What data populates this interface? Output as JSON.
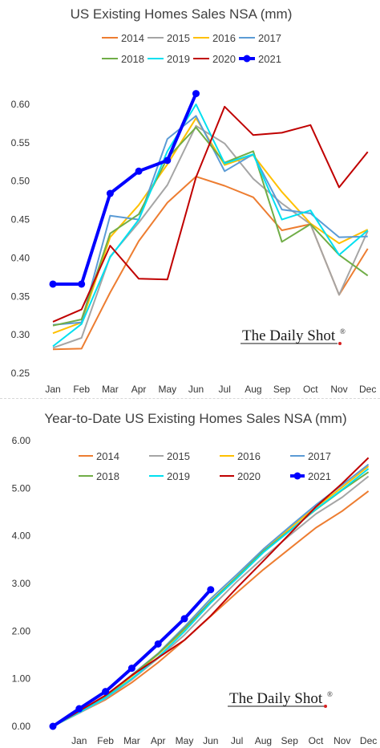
{
  "chart_data": [
    {
      "type": "line",
      "title": "US Existing Homes Sales NSA (mm)",
      "categories": [
        "Jan",
        "Feb",
        "Mar",
        "Apr",
        "May",
        "Jun",
        "Jul",
        "Aug",
        "Sep",
        "Oct",
        "Nov",
        "Dec"
      ],
      "ylim": [
        0.25,
        0.6
      ],
      "yticks": [
        "0.25",
        "0.30",
        "0.35",
        "0.40",
        "0.45",
        "0.50",
        "0.55",
        "0.60"
      ],
      "grid": false,
      "legend_position": "top",
      "watermark": "The Daily Shot",
      "series": [
        {
          "name": "2014",
          "color": "#ED7D31",
          "values": [
            0.281,
            0.282,
            0.355,
            0.422,
            0.472,
            0.506,
            0.494,
            0.479,
            0.436,
            0.444,
            0.352,
            0.412
          ]
        },
        {
          "name": "2015",
          "color": "#A5A5A5",
          "values": [
            0.283,
            0.296,
            0.402,
            0.446,
            0.495,
            0.572,
            0.549,
            0.503,
            0.471,
            0.444,
            0.352,
            0.435
          ]
        },
        {
          "name": "2016",
          "color": "#FFC000",
          "values": [
            0.302,
            0.316,
            0.427,
            0.469,
            0.522,
            0.582,
            0.521,
            0.534,
            0.486,
            0.445,
            0.419,
            0.437
          ]
        },
        {
          "name": "2017",
          "color": "#5B9BD5",
          "values": [
            0.313,
            0.316,
            0.455,
            0.45,
            0.555,
            0.585,
            0.513,
            0.535,
            0.463,
            0.458,
            0.427,
            0.428
          ]
        },
        {
          "name": "2018",
          "color": "#70AD47",
          "values": [
            0.312,
            0.32,
            0.432,
            0.457,
            0.53,
            0.57,
            0.524,
            0.539,
            0.421,
            0.444,
            0.404,
            0.377
          ]
        },
        {
          "name": "2019",
          "color": "#00E0F0",
          "values": [
            0.285,
            0.314,
            0.401,
            0.45,
            0.539,
            0.6,
            0.523,
            0.535,
            0.45,
            0.462,
            0.404,
            0.436
          ]
        },
        {
          "name": "2020",
          "color": "#C00000",
          "values": [
            0.317,
            0.333,
            0.416,
            0.373,
            0.372,
            0.505,
            0.597,
            0.56,
            0.563,
            0.573,
            0.492,
            0.538
          ]
        },
        {
          "name": "2021",
          "color": "#0000FF",
          "values": [
            0.366,
            0.366,
            0.484,
            0.513,
            0.527,
            0.614,
            null,
            null,
            null,
            null,
            null,
            null
          ]
        }
      ]
    },
    {
      "type": "line",
      "title": "Year-to-Date US Existing Homes Sales NSA (mm)",
      "categories": [
        "",
        "Jan",
        "Feb",
        "Mar",
        "Apr",
        "May",
        "Jun",
        "Jul",
        "Aug",
        "Sep",
        "Oct",
        "Nov",
        "Dec"
      ],
      "ylim": [
        0.0,
        6.0
      ],
      "yticks": [
        "0.00",
        "1.00",
        "2.00",
        "3.00",
        "4.00",
        "5.00",
        "6.00"
      ],
      "grid": false,
      "legend_position": "top",
      "watermark": "The Daily Shot",
      "series": [
        {
          "name": "2014",
          "color": "#ED7D31",
          "values": [
            0,
            0.28,
            0.56,
            0.92,
            1.34,
            1.81,
            2.31,
            2.81,
            3.29,
            3.73,
            4.17,
            4.52,
            4.94
          ]
        },
        {
          "name": "2015",
          "color": "#A5A5A5",
          "values": [
            0,
            0.28,
            0.58,
            0.98,
            1.43,
            1.92,
            2.49,
            3.04,
            3.54,
            4.01,
            4.46,
            4.81,
            5.25
          ]
        },
        {
          "name": "2016",
          "color": "#FFC000",
          "values": [
            0,
            0.3,
            0.62,
            1.05,
            1.51,
            2.03,
            2.62,
            3.14,
            3.67,
            4.16,
            4.6,
            5.02,
            5.46
          ]
        },
        {
          "name": "2017",
          "color": "#5B9BD5",
          "values": [
            0,
            0.31,
            0.63,
            1.08,
            1.53,
            2.09,
            2.68,
            3.19,
            3.72,
            4.19,
            4.65,
            5.07,
            5.5
          ]
        },
        {
          "name": "2018",
          "color": "#70AD47",
          "values": [
            0,
            0.31,
            0.63,
            1.07,
            1.52,
            2.05,
            2.62,
            3.14,
            3.68,
            4.11,
            4.55,
            4.96,
            5.34
          ]
        },
        {
          "name": "2019",
          "color": "#00E0F0",
          "values": [
            0,
            0.29,
            0.6,
            1.0,
            1.45,
            1.99,
            2.59,
            3.11,
            3.65,
            4.1,
            4.56,
            4.97,
            5.41
          ]
        },
        {
          "name": "2020",
          "color": "#C00000",
          "values": [
            0,
            0.32,
            0.65,
            1.07,
            1.44,
            1.81,
            2.32,
            2.91,
            3.47,
            4.04,
            4.61,
            5.1,
            5.64
          ]
        },
        {
          "name": "2021",
          "color": "#0000FF",
          "values": [
            0,
            0.37,
            0.73,
            1.22,
            1.73,
            2.26,
            2.87,
            null,
            null,
            null,
            null,
            null,
            null
          ]
        }
      ]
    }
  ]
}
